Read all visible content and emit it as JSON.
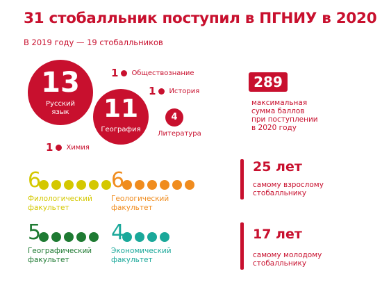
{
  "title": "31 стобалльник поступил в ПГНИУ в 2020",
  "subtitle": "В 2019 году — 19 стобалльников",
  "circles": {
    "russian": {
      "count": "13",
      "label_line1": "Русский",
      "label_line2": "язык"
    },
    "geography": {
      "count": "11",
      "label": "География"
    },
    "literature": {
      "count": "4",
      "label": "Литература"
    }
  },
  "small_subjects": {
    "social": {
      "count": "1",
      "label": "Обществознание"
    },
    "history": {
      "count": "1",
      "label": "История"
    },
    "chemistry": {
      "count": "1",
      "label": "Химия"
    }
  },
  "faculties": [
    {
      "count": "6",
      "line1": "Филологический",
      "line2": "факультет",
      "color": "#d4c800",
      "dots": 6
    },
    {
      "count": "6",
      "line1": "Геологический",
      "line2": "факультет",
      "color": "#f08c1e",
      "dots": 6
    },
    {
      "count": "5",
      "line1": "Географический",
      "line2": "факультет",
      "color": "#1e7a32",
      "dots": 5
    },
    {
      "count": "4",
      "line1": "Экономический",
      "line2": "факультет",
      "color": "#1aa89a",
      "dots": 4
    }
  ],
  "stats": {
    "max_score": "289",
    "max_text": [
      "максимальная",
      "сумма баллов",
      "при поступлении",
      "в 2020 году"
    ],
    "oldest_age": "25 лет",
    "oldest_text": [
      "самому взрослому",
      "стобалльнику"
    ],
    "youngest_age": "17 лет",
    "youngest_text": [
      "самому молодому",
      "стобалльнику"
    ]
  },
  "colors": {
    "accent": "#c8102e"
  }
}
